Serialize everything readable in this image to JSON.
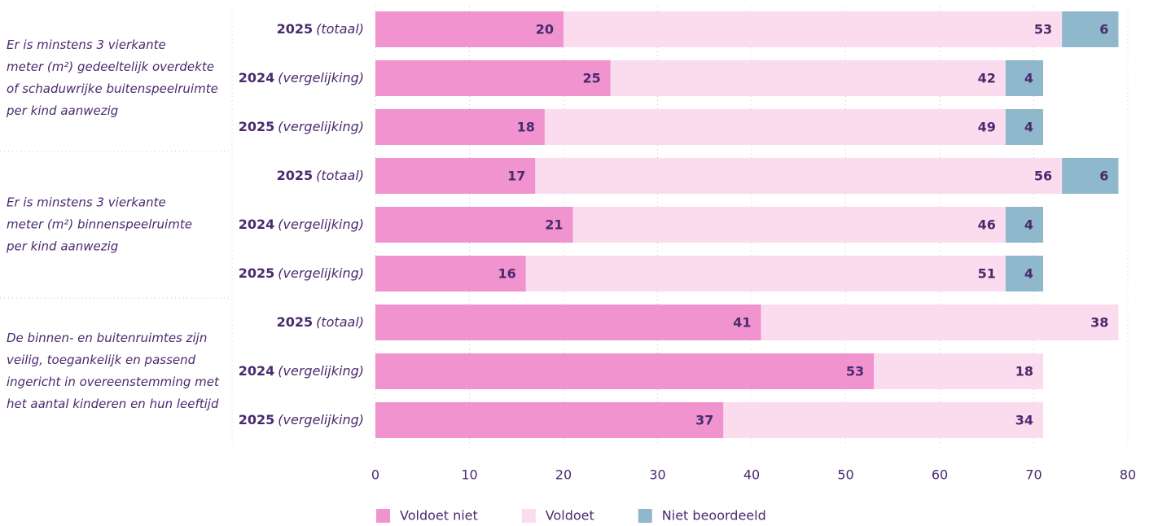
{
  "chart_data": {
    "type": "stacked-bar-horizontal",
    "groups": [
      {
        "lines": [
          "Er is minstens 3 vierkante",
          "meter (m²) gedeeltelijk overdekte",
          "of schaduwrijke buitenspeelruimte",
          "per kind aanwezig"
        ]
      },
      {
        "lines": [
          "Er is minstens 3 vierkante",
          "meter (m²) binnenspeelruimte",
          "per kind aanwezig"
        ]
      },
      {
        "lines": [
          "De binnen- en buitenruimtes zijn",
          "veilig, toegankelijk en passend",
          "ingericht in overeenstemming met",
          "het aantal kinderen en hun leeftijd"
        ]
      }
    ],
    "categories": [
      "2025",
      "2024",
      "2025",
      "2025",
      "2024",
      "2025",
      "2025",
      "2024",
      "2025"
    ],
    "category_notes": [
      "(totaal)",
      "(vergelijking)",
      "(vergelijking)",
      "(totaal)",
      "(vergelijking)",
      "(vergelijking)",
      "(totaal)",
      "(vergelijking)",
      "(vergelijking)"
    ],
    "series": [
      {
        "name": "Voldoet niet",
        "color": "#f093cf",
        "values": [
          20,
          25,
          18,
          17,
          21,
          16,
          41,
          53,
          37
        ]
      },
      {
        "name": "Voldoet",
        "color": "#fbdcef",
        "values": [
          53,
          42,
          49,
          56,
          46,
          51,
          38,
          18,
          34
        ]
      },
      {
        "name": "Niet beoordeeld",
        "color": "#8fb8cc",
        "values": [
          6,
          4,
          4,
          6,
          4,
          4,
          null,
          null,
          null
        ]
      }
    ],
    "xlim": [
      0,
      80
    ],
    "xticks": [
      0,
      10,
      20,
      30,
      40,
      50,
      60,
      70,
      80
    ],
    "grid": true,
    "legend": "bottom"
  }
}
